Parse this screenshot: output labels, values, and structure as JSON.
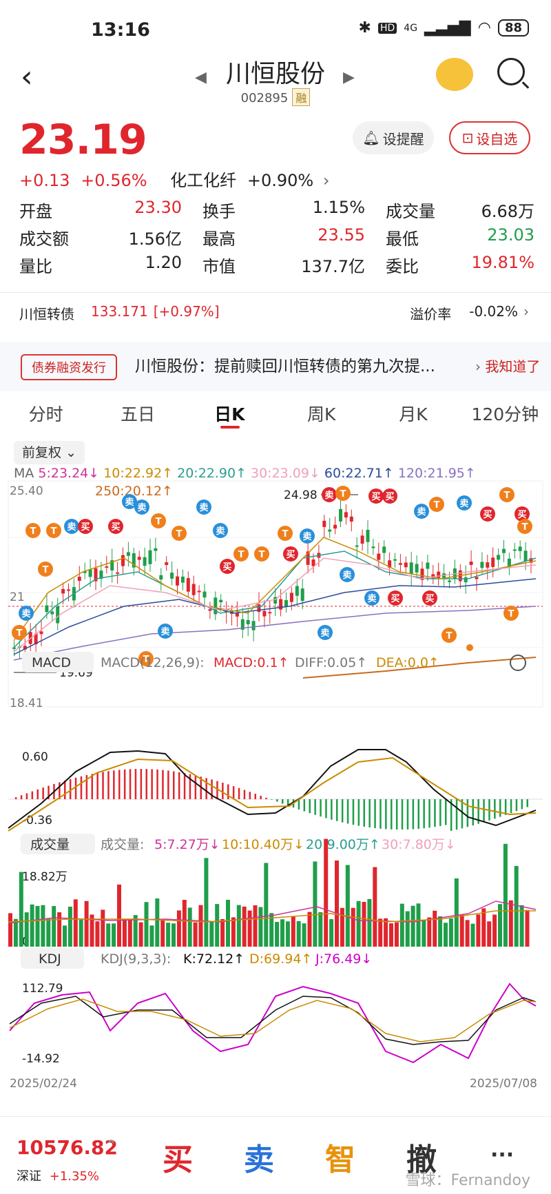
{
  "status": {
    "time": "13:16",
    "battery": "88",
    "network": "4G"
  },
  "header": {
    "name": "川恒股份",
    "code": "002895",
    "badge": "融"
  },
  "quote": {
    "price": "23.19",
    "change": "+0.13",
    "change_pct": "+0.56%",
    "sector": "化工化纤",
    "sector_pct": "+0.90%",
    "alert_label": "设提醒",
    "watch_label": "设自选"
  },
  "stats": [
    [
      {
        "label": "开盘",
        "value": "23.30",
        "color": "red"
      },
      {
        "label": "换手",
        "value": "1.15%",
        "color": ""
      },
      {
        "label": "成交量",
        "value": "6.68万",
        "color": ""
      }
    ],
    [
      {
        "label": "成交额",
        "value": "1.56亿",
        "color": ""
      },
      {
        "label": "最高",
        "value": "23.55",
        "color": "red"
      },
      {
        "label": "最低",
        "value": "23.03",
        "color": "green"
      }
    ],
    [
      {
        "label": "量比",
        "value": "1.20",
        "color": ""
      },
      {
        "label": "市值",
        "value": "137.7亿",
        "color": ""
      },
      {
        "label": "委比",
        "value": "19.81%",
        "color": "red"
      }
    ]
  ],
  "convertible": {
    "name": "川恒转债",
    "price": "133.171",
    "pct": "[+0.97%]",
    "premium_label": "溢价率",
    "premium": "-0.02%"
  },
  "news": {
    "tag": "债券融资发行",
    "text": "川恒股份：提前赎回川恒转债的第九次提...",
    "ack": "我知道了"
  },
  "tabs": [
    "分时",
    "五日",
    "日K",
    "周K",
    "月K",
    "120分钟"
  ],
  "ma": {
    "adjust": "前复权",
    "line1": [
      {
        "text": "MA",
        "color": "#666"
      },
      {
        "text": "5:23.24↓",
        "color": "#cc3399"
      },
      {
        "text": "10:22.92↑",
        "color": "#c98b00"
      },
      {
        "text": "20:22.90↑",
        "color": "#2a9d8f"
      },
      {
        "text": "30:23.09↓",
        "color": "#f0a0b8"
      },
      {
        "text": "60:22.71↑",
        "color": "#2a4b9b"
      },
      {
        "text": "120:21.95↑",
        "color": "#8a6fc2"
      }
    ],
    "line2": {
      "text": "250:20.12↑",
      "color": "#c96a1b"
    }
  },
  "kline": {
    "top_label": "25.40",
    "bottom_label": "18.41",
    "high_label": "24.98",
    "low_label": "19.69",
    "mid_label": "21"
  },
  "macd": {
    "btn": "MACD",
    "params": "MACD(12,26,9):",
    "macd": "MACD:0.1↑",
    "diff": "DIFF:0.05↑",
    "dea": "DEA:0.0↑",
    "top": "0.60",
    "bottom": "-0.36"
  },
  "volume": {
    "btn": "成交量",
    "label": "成交量:",
    "v5": "5:7.27万↓",
    "v10": "10:10.40万↓",
    "v20": "20:9.00万↑",
    "v30": "30:7.80万↓",
    "top": "18.82万",
    "zero": "0"
  },
  "kdj": {
    "btn": "KDJ",
    "params": "KDJ(9,3,3):",
    "k": "K:72.12↑",
    "d": "D:69.94↑",
    "j": "J:76.49↓",
    "top": "112.79",
    "bottom": "-14.92"
  },
  "dates": {
    "start": "2025/02/24",
    "end": "2025/07/08"
  },
  "bottom": {
    "index_value": "10576.82",
    "index_name": "深证",
    "index_pct": "+1.35%",
    "buy": "买",
    "sell": "卖",
    "smart": "智",
    "cancel": "撤",
    "more": "···",
    "watermark": "雪球：Fernandoy"
  }
}
